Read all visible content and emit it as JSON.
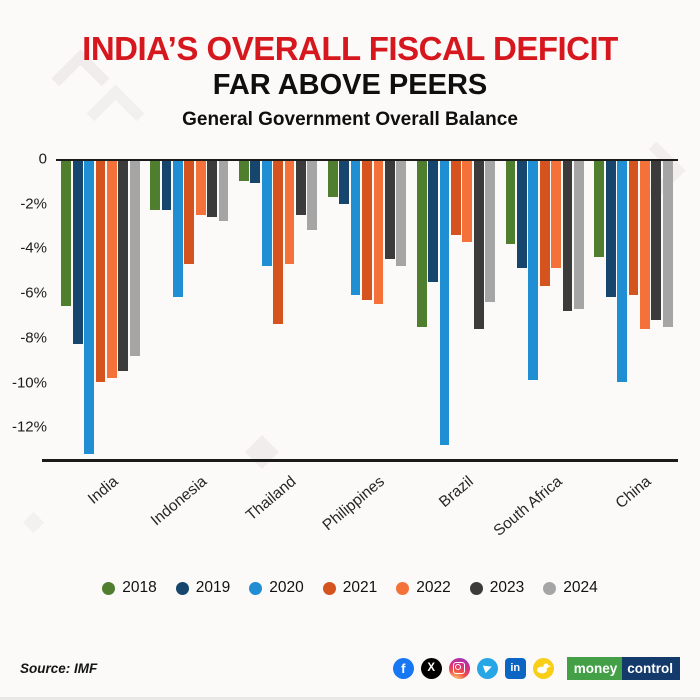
{
  "title": {
    "line1": "INDIA’S OVERALL FISCAL DEFICIT",
    "line2": "FAR ABOVE PEERS",
    "subtitle": "General Government Overall Balance"
  },
  "chart_data": {
    "type": "bar",
    "title": "General Government Overall Balance",
    "categories": [
      "India",
      "Indonesia",
      "Thailand",
      "Philippines",
      "Brazil",
      "South Africa",
      "China"
    ],
    "series": [
      {
        "name": "2018",
        "color": "#4f7f2e",
        "values": [
          -6.5,
          -2.2,
          -0.9,
          -1.6,
          -7.4,
          -3.7,
          -4.3
        ]
      },
      {
        "name": "2019",
        "color": "#16466d",
        "values": [
          -8.2,
          -2.2,
          -1.0,
          -1.9,
          -5.4,
          -4.8,
          -6.1
        ]
      },
      {
        "name": "2020",
        "color": "#1f8ed3",
        "values": [
          -13.1,
          -6.1,
          -4.7,
          -6.0,
          -12.7,
          -9.8,
          -9.9
        ]
      },
      {
        "name": "2021",
        "color": "#d5531f",
        "values": [
          -9.9,
          -4.6,
          -7.3,
          -6.2,
          -3.3,
          -5.6,
          -6.0
        ]
      },
      {
        "name": "2022",
        "color": "#f4723a",
        "values": [
          -9.7,
          -2.4,
          -4.6,
          -6.4,
          -3.6,
          -4.8,
          -7.5
        ]
      },
      {
        "name": "2023",
        "color": "#3b3b3b",
        "values": [
          -9.4,
          -2.5,
          -2.4,
          -4.4,
          -7.5,
          -6.7,
          -7.1
        ]
      },
      {
        "name": "2024",
        "color": "#a5a5a5",
        "values": [
          -8.7,
          -2.7,
          -3.1,
          -4.7,
          -6.3,
          -6.6,
          -7.4
        ]
      }
    ],
    "y_ticks": [
      "0",
      "-2%",
      "-4%",
      "-6%",
      "-8%",
      "-10%",
      "-12%"
    ],
    "y_tick_values": [
      0,
      -2,
      -4,
      -6,
      -8,
      -10,
      -12
    ],
    "ylim": [
      -13.5,
      0
    ],
    "grid": false,
    "legend_position": "bottom"
  },
  "footer": {
    "source": "Source: IMF",
    "icons": [
      {
        "name": "facebook",
        "glyph": "f"
      },
      {
        "name": "x",
        "glyph": "X"
      },
      {
        "name": "instagram",
        "glyph": ""
      },
      {
        "name": "telegram",
        "glyph": ""
      },
      {
        "name": "linkedin",
        "glyph": "in"
      },
      {
        "name": "koo",
        "glyph": ""
      }
    ],
    "brand": {
      "part1": "money",
      "part2": "control"
    }
  }
}
